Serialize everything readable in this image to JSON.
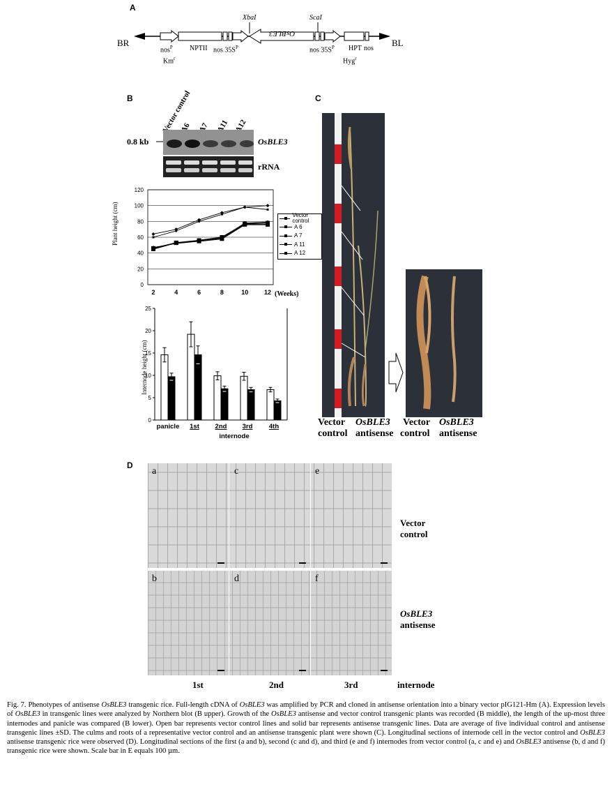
{
  "panelA": {
    "label": "A",
    "BR": "BR",
    "BL": "BL",
    "nosP": "nos",
    "P": "P",
    "Km": "Km",
    "r": "r",
    "NPTII": "NPTII",
    "nos_35S_left": "nos 35S",
    "XbaI": "XbaI",
    "ScaI": "ScaI",
    "OsBLE3_reversed": "OsBLE3",
    "nos_35S_right": "nos 35S",
    "HPT": "HPT",
    "nos_right": "nos",
    "Hyg": "Hyg"
  },
  "panelB": {
    "label": "B",
    "blot": {
      "lanes": [
        "Vector control",
        "A6",
        "A7",
        "A11",
        "A12"
      ],
      "size_marker": "0.8 kb",
      "gene_label": "OsBLE3",
      "rrna_label": "rRNA"
    },
    "line_chart": {
      "ylabel": "Plant height (cm)",
      "xlabel": "(Weeks)",
      "y_ticks": [
        "0",
        "20",
        "40",
        "60",
        "80",
        "100",
        "120"
      ],
      "x_ticks": [
        "2",
        "4",
        "6",
        "8",
        "10",
        "12"
      ],
      "legend": [
        "Vector control",
        "A 6",
        "A 7",
        "A 11",
        "A 12"
      ]
    },
    "bar_chart": {
      "ylabel": "Internode height (cm)",
      "y_ticks": [
        "0",
        "5",
        "10",
        "15",
        "20",
        "25"
      ],
      "categories": [
        "panicle",
        "1st",
        "2nd",
        "3rd",
        "4th"
      ],
      "group_label": "internode"
    }
  },
  "panelC": {
    "label": "C",
    "left_caption_1": "Vector",
    "left_caption_2": "control",
    "mid_caption_1": "OsBLE3",
    "mid_caption_2": "antisense",
    "right_caption_1": "Vector",
    "right_caption_2": "control",
    "right2_caption_1": "OsBLE3",
    "right2_caption_2": "antisense"
  },
  "panelD": {
    "label": "D",
    "tiles": [
      "a",
      "c",
      "e",
      "b",
      "d",
      "f"
    ],
    "row_labels": {
      "vector_1": "Vector",
      "vector_2": "control",
      "anti_1": "OsBLE3",
      "anti_2": "antisense"
    },
    "columns": [
      "1st",
      "2nd",
      "3rd"
    ],
    "axis_label": "internode"
  },
  "caption": {
    "fig": "Fig. 7.",
    "text_parts": [
      " Phenotypes of antisense ",
      "OsBLE3",
      " transgenic rice. Full-length cDNA of ",
      "OsBLE3",
      " was amplified by PCR and cloned in antisense orientation into a binary vector pIG121-Hm (A). Expression levels of ",
      "OsBLE3",
      " in transgenic lines were analyzed by Northern blot (B upper). Growth of the ",
      "OsBLE3",
      " antisense and vector control transgenic plants was recorded (B middle), the length of the up-most three internodes and panicle was compared (B lower). Open bar represents vector control lines and solid bar represents antisense transgenic lines. Data are average of five individual control and antisense transgenic lines ±SD. The culms and roots of a representative vector control and an antisense transgenic plant were shown (C). Longitudinal sections of internode cell in the vector control and ",
      "OsBLE3",
      " antisense transgenic rice were observed (D). Longitudinal sections of the first (a and b), second (c and d), and third (e and f) internodes from vector control (a, c and e) and ",
      "OsBLE3",
      " antisense (b, d and f) transgenic rice were shown. Scale bar in E equals 100 µm."
    ]
  },
  "chart_data": [
    {
      "type": "line",
      "x": [
        2,
        4,
        6,
        8,
        10,
        12
      ],
      "ylabel": "Plant height (cm)",
      "xlabel": "(Weeks)",
      "ylim": [
        0,
        120
      ],
      "legend": "right",
      "series": [
        {
          "name": "Vector control",
          "values": [
            64,
            70,
            82,
            91,
            98,
            100
          ]
        },
        {
          "name": "A 6",
          "values": [
            60,
            68,
            80,
            89,
            98,
            95
          ]
        },
        {
          "name": "A 7",
          "values": [
            47,
            52,
            55,
            59,
            78,
            79
          ]
        },
        {
          "name": "A 11",
          "values": [
            45,
            53,
            55,
            58,
            76,
            76
          ]
        },
        {
          "name": "A 12",
          "values": [
            46,
            53,
            56,
            60,
            77,
            78
          ]
        }
      ]
    },
    {
      "type": "bar",
      "categories": [
        "panicle",
        "1st",
        "2nd",
        "3rd",
        "4th"
      ],
      "ylabel": "Internode height (cm)",
      "ylim": [
        0,
        25
      ],
      "series": [
        {
          "name": "vector control",
          "values": [
            14.6,
            19.2,
            9.9,
            9.8,
            6.8
          ],
          "err": [
            1.6,
            2.8,
            0.9,
            0.9,
            0.5
          ]
        },
        {
          "name": "antisense",
          "values": [
            9.7,
            14.6,
            7.0,
            6.8,
            4.3
          ],
          "err": [
            0.8,
            2.0,
            0.6,
            0.5,
            0.4
          ]
        }
      ]
    }
  ]
}
